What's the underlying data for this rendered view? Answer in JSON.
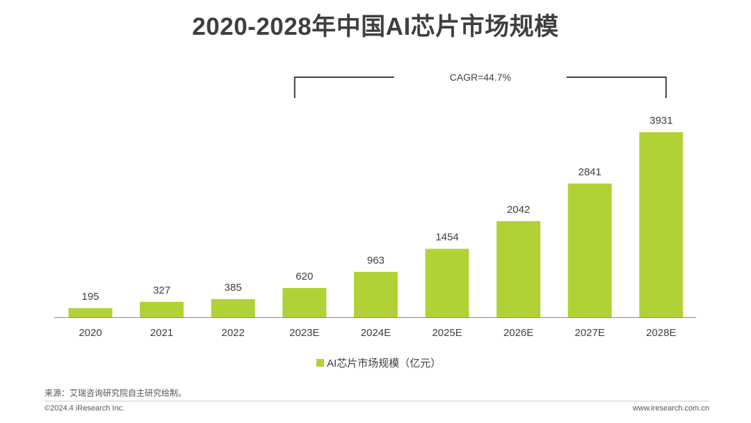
{
  "header": {
    "title": "2020-2028年中国AI芯片市场规模"
  },
  "chart_data": {
    "type": "bar",
    "categories": [
      "2020",
      "2021",
      "2022",
      "2023E",
      "2024E",
      "2025E",
      "2026E",
      "2027E",
      "2028E"
    ],
    "series": [
      {
        "name": "AI芯片市场规模（亿元）",
        "values": [
          195,
          327,
          385,
          620,
          963,
          1454,
          2042,
          2841,
          3931
        ],
        "color": "#b1d236"
      }
    ],
    "ylim": [
      0,
      4000
    ],
    "grid": false,
    "legend": "bottom",
    "annotation": {
      "text": "CAGR=44.7%",
      "from_category": "2023E",
      "to_category": "2028E"
    }
  },
  "footer": {
    "source": "来源：艾瑞咨询研究院自主研究绘制。",
    "copyright": "©2024.4 iResearch Inc.",
    "website": "www.iresearch.com.cn"
  }
}
